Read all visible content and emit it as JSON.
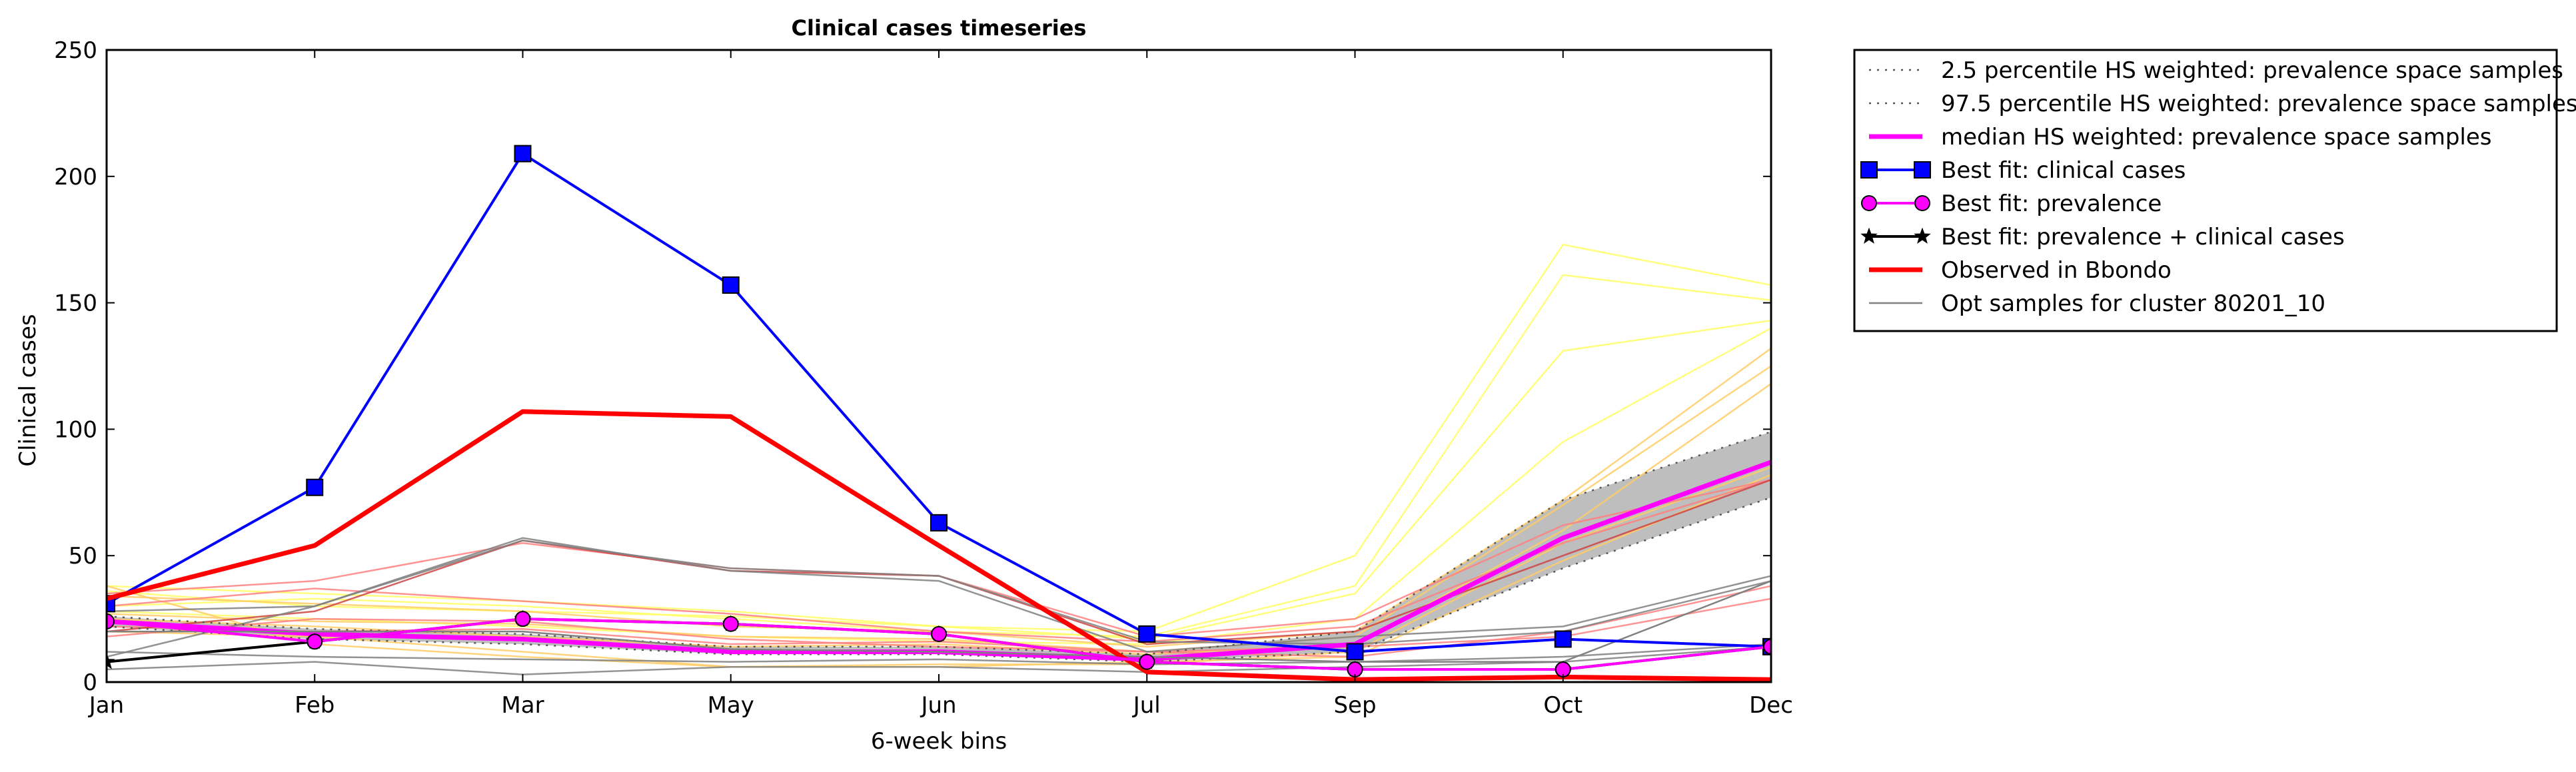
{
  "chart_data": {
    "type": "line",
    "title": "Clinical cases timeseries",
    "xlabel": "6-week bins",
    "ylabel": "Clinical cases",
    "categories": [
      "Jan",
      "Feb",
      "Mar",
      "May",
      "Jun",
      "Jul",
      "Sep",
      "Oct",
      "Dec"
    ],
    "ylim": [
      0,
      250
    ],
    "yticks": [
      0,
      50,
      100,
      150,
      200,
      250
    ],
    "grid": false,
    "legend_position": "outside-right",
    "band": {
      "lower": [
        22,
        17,
        15,
        11,
        11,
        8,
        12,
        45,
        73
      ],
      "upper": [
        26,
        21,
        19,
        14,
        14,
        11,
        20,
        72,
        99
      ],
      "color": "#bebebe"
    },
    "series": [
      {
        "name": "2.5 percentile HS weighted: prevalence space samples",
        "style": "dotted",
        "color": "#555555",
        "values": [
          22,
          17,
          15,
          11,
          11,
          8,
          12,
          45,
          73
        ]
      },
      {
        "name": "97.5 percentile HS weighted: prevalence space samples",
        "style": "dotted",
        "color": "#555555",
        "values": [
          26,
          21,
          19,
          14,
          14,
          11,
          20,
          72,
          99
        ]
      },
      {
        "name": "median HS weighted: prevalence space samples",
        "style": "solid",
        "color": "#ff00ff",
        "values": [
          24,
          19,
          17,
          12,
          12,
          9,
          15,
          57,
          87
        ]
      },
      {
        "name": "Best fit: clinical cases",
        "style": "solid",
        "marker": "square",
        "color": "#0000ff",
        "values": [
          31,
          77,
          209,
          157,
          63,
          19,
          12,
          17,
          14
        ]
      },
      {
        "name": "Best fit: prevalence",
        "style": "solid",
        "marker": "circle",
        "color": "#ff00ff",
        "values": [
          24,
          16,
          25,
          23,
          19,
          8,
          5,
          5,
          14
        ]
      },
      {
        "name": "Best fit: prevalence + clinical cases",
        "style": "solid",
        "marker": "star",
        "color": "#000000",
        "values": [
          8,
          16,
          25,
          23,
          19,
          8,
          5,
          5,
          14
        ]
      },
      {
        "name": "Observed in Bbondo",
        "style": "solid",
        "color": "#ff0000",
        "values": [
          33,
          54,
          107,
          105,
          54,
          4,
          1,
          2,
          1
        ]
      },
      {
        "name": "Opt samples for cluster 80201_10",
        "style": "solid",
        "color": "#808080",
        "values": [
          20,
          20,
          20,
          13,
          12,
          10,
          8,
          8,
          40
        ]
      }
    ],
    "samples": [
      {
        "color": "#ffff66",
        "values": [
          38,
          35,
          32,
          28,
          22,
          20,
          50,
          173,
          157
        ]
      },
      {
        "color": "#ffff66",
        "values": [
          30,
          33,
          30,
          25,
          20,
          18,
          38,
          161,
          151
        ]
      },
      {
        "color": "#ffff66",
        "values": [
          36,
          30,
          28,
          26,
          22,
          17,
          35,
          131,
          143
        ]
      },
      {
        "color": "#ffff66",
        "values": [
          28,
          25,
          22,
          18,
          16,
          15,
          25,
          95,
          140
        ]
      },
      {
        "color": "#ffcc66",
        "values": [
          34,
          31,
          28,
          22,
          20,
          14,
          20,
          72,
          132
        ]
      },
      {
        "color": "#ffcc66",
        "values": [
          27,
          24,
          23,
          18,
          17,
          12,
          18,
          70,
          125
        ]
      },
      {
        "color": "#ffcc66",
        "values": [
          25,
          22,
          18,
          14,
          15,
          11,
          15,
          60,
          118
        ]
      },
      {
        "color": "#ffcc66",
        "values": [
          20,
          18,
          12,
          6,
          7,
          7,
          12,
          55,
          85
        ]
      },
      {
        "color": "#ffcc66",
        "values": [
          38,
          15,
          10,
          6,
          6,
          8,
          10,
          48,
          82
        ]
      },
      {
        "color": "#ff8080",
        "values": [
          35,
          40,
          55,
          45,
          42,
          18,
          25,
          62,
          80
        ]
      },
      {
        "color": "#ff8080",
        "values": [
          30,
          37,
          32,
          27,
          20,
          16,
          22,
          55,
          80
        ]
      },
      {
        "color": "#ff8080",
        "values": [
          22,
          20,
          21,
          15,
          16,
          12,
          14,
          18,
          33
        ]
      },
      {
        "color": "#ff8080",
        "values": [
          18,
          25,
          24,
          17,
          14,
          12,
          10,
          20,
          38
        ]
      },
      {
        "color": "#cc4444",
        "values": [
          20,
          28,
          56,
          44,
          42,
          15,
          20,
          50,
          80
        ]
      },
      {
        "color": "#808080",
        "values": [
          28,
          30,
          57,
          44,
          40,
          12,
          18,
          22,
          42
        ]
      },
      {
        "color": "#808080",
        "values": [
          10,
          30,
          56,
          45,
          42,
          16,
          15,
          20,
          40
        ]
      },
      {
        "color": "#808080",
        "values": [
          5,
          8,
          3,
          6,
          6,
          4,
          6,
          8,
          14
        ]
      },
      {
        "color": "#808080",
        "values": [
          12,
          10,
          9,
          8,
          9,
          7,
          8,
          10,
          15
        ]
      }
    ]
  }
}
